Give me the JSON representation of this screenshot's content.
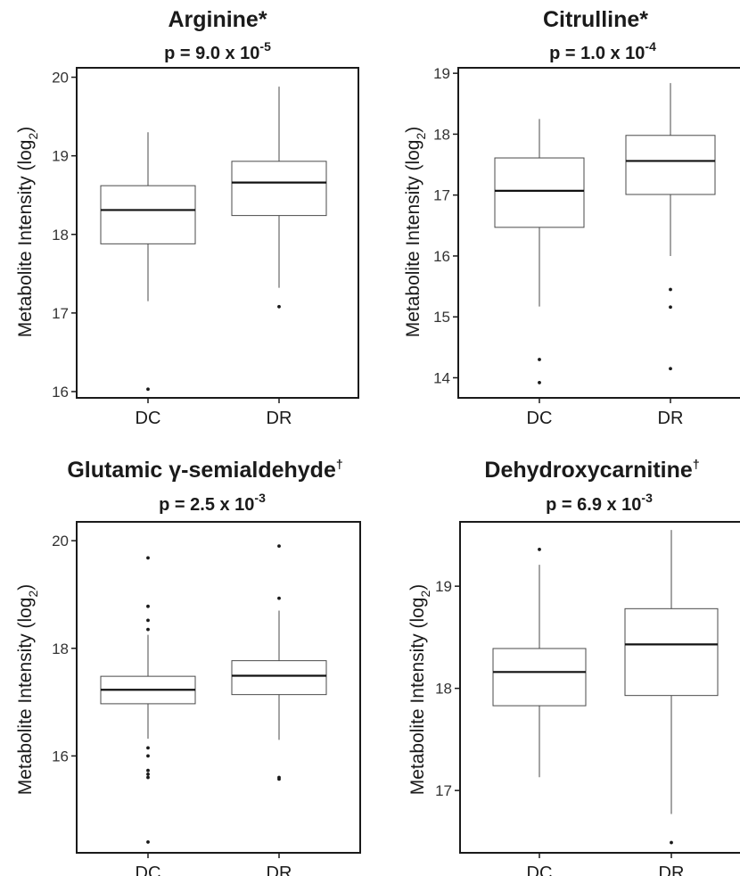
{
  "chart_data": [
    {
      "type": "boxplot",
      "title": "Arginine*",
      "pvalue": {
        "base": "p = 9.0 x 10",
        "exp": "-5"
      },
      "ylabel": {
        "main": "Metabolite Intensity (log",
        "sub": "2",
        "end": ")"
      },
      "ylim": [
        15.92,
        20.12
      ],
      "yticks": [
        16,
        17,
        18,
        19,
        20
      ],
      "categories": [
        "DC",
        "DR"
      ],
      "boxes": [
        {
          "name": "DC",
          "min": 17.15,
          "q1": 17.88,
          "median": 18.31,
          "q3": 18.62,
          "max": 19.3,
          "outliers": [
            16.03
          ]
        },
        {
          "name": "DR",
          "min": 17.32,
          "q1": 18.24,
          "median": 18.66,
          "q3": 18.93,
          "max": 19.88,
          "outliers": [
            17.08
          ]
        }
      ]
    },
    {
      "type": "boxplot",
      "title": "Citrulline*",
      "pvalue": {
        "base": "p = 1.0 x 10",
        "exp": "-4"
      },
      "ylabel": {
        "main": "Metabolite Intensity (log",
        "sub": "2",
        "end": ")"
      },
      "ylim": [
        13.67,
        19.09
      ],
      "yticks": [
        14,
        15,
        16,
        17,
        18,
        19
      ],
      "categories": [
        "DC",
        "DR"
      ],
      "boxes": [
        {
          "name": "DC",
          "min": 15.17,
          "q1": 16.47,
          "median": 17.07,
          "q3": 17.61,
          "max": 18.25,
          "outliers": [
            14.3,
            13.92
          ]
        },
        {
          "name": "DR",
          "min": 16.0,
          "q1": 17.01,
          "median": 17.56,
          "q3": 17.98,
          "max": 18.84,
          "outliers": [
            15.45,
            15.16,
            14.15
          ]
        }
      ]
    },
    {
      "type": "boxplot",
      "title": "Glutamic γ-semialdehyde",
      "title_sup": "†",
      "pvalue": {
        "base": "p = 2.5 x 10",
        "exp": "-3"
      },
      "ylabel": {
        "main": "Metabolite Intensity (log",
        "sub": "2",
        "end": ")"
      },
      "ylim": [
        14.2,
        20.35
      ],
      "yticks": [
        16,
        18,
        20
      ],
      "categories": [
        "DC",
        "DR"
      ],
      "boxes": [
        {
          "name": "DC",
          "min": 16.32,
          "q1": 16.97,
          "median": 17.23,
          "q3": 17.48,
          "max": 18.25,
          "outliers": [
            19.68,
            18.78,
            18.52,
            18.35,
            16.15,
            16.0,
            15.73,
            15.66,
            15.6,
            14.4
          ]
        },
        {
          "name": "DR",
          "min": 16.3,
          "q1": 17.14,
          "median": 17.49,
          "q3": 17.77,
          "max": 18.7,
          "outliers": [
            19.9,
            18.93,
            15.6,
            15.57
          ]
        }
      ]
    },
    {
      "type": "boxplot",
      "title": "Dehydroxycarnitine",
      "title_sup": "†",
      "pvalue": {
        "base": "p = 6.9 x 10",
        "exp": "-3"
      },
      "ylabel": {
        "main": "Metabolite Intensity (log",
        "sub": "2",
        "end": ")"
      },
      "ylim": [
        16.39,
        19.63
      ],
      "yticks": [
        17,
        18,
        19
      ],
      "categories": [
        "DC",
        "DR"
      ],
      "boxes": [
        {
          "name": "DC",
          "min": 17.13,
          "q1": 17.83,
          "median": 18.16,
          "q3": 18.39,
          "max": 19.21,
          "outliers": [
            19.36
          ]
        },
        {
          "name": "DR",
          "min": 16.77,
          "q1": 17.93,
          "median": 18.43,
          "q3": 18.78,
          "max": 19.55,
          "outliers": [
            16.49
          ]
        }
      ]
    }
  ]
}
